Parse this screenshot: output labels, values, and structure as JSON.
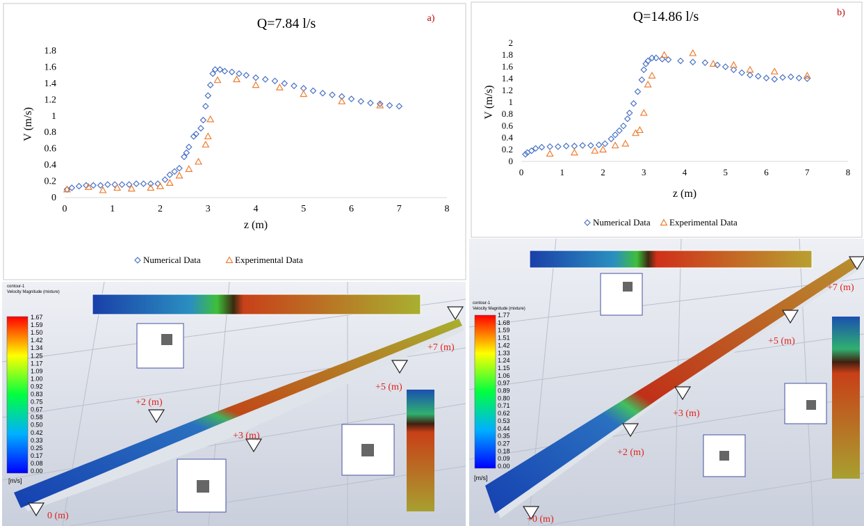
{
  "chart_data": [
    {
      "type": "scatter",
      "title": "Q=7.84  l/s",
      "label": "a)",
      "xlabel": "z (m)",
      "ylabel": "V (m/s)",
      "xlim": [
        0,
        8
      ],
      "xticks": [
        0,
        1,
        2,
        3,
        4,
        5,
        6,
        7,
        8
      ],
      "ylim": [
        0,
        1.8
      ],
      "yticks": [
        0,
        0.2,
        0.4,
        0.6,
        0.8,
        1,
        1.2,
        1.4,
        1.6,
        1.8
      ],
      "grid": false,
      "series": [
        {
          "name": "Numerical Data",
          "color": "#4a72c4",
          "marker": "diamond",
          "x": [
            0.05,
            0.15,
            0.3,
            0.45,
            0.6,
            0.75,
            0.9,
            1.05,
            1.2,
            1.35,
            1.5,
            1.65,
            1.8,
            1.95,
            2.1,
            2.2,
            2.3,
            2.4,
            2.5,
            2.55,
            2.6,
            2.7,
            2.75,
            2.85,
            2.9,
            2.95,
            3.0,
            3.05,
            3.1,
            3.15,
            3.25,
            3.35,
            3.5,
            3.65,
            3.8,
            4.0,
            4.2,
            4.4,
            4.6,
            4.8,
            5.0,
            5.2,
            5.4,
            5.6,
            5.8,
            6.0,
            6.2,
            6.4,
            6.6,
            6.8,
            7.0
          ],
          "values": [
            0.1,
            0.12,
            0.14,
            0.15,
            0.15,
            0.15,
            0.16,
            0.16,
            0.16,
            0.16,
            0.17,
            0.17,
            0.17,
            0.17,
            0.22,
            0.28,
            0.32,
            0.36,
            0.5,
            0.55,
            0.62,
            0.75,
            0.78,
            0.85,
            0.95,
            1.12,
            1.25,
            1.38,
            1.52,
            1.57,
            1.57,
            1.55,
            1.54,
            1.52,
            1.5,
            1.47,
            1.45,
            1.43,
            1.4,
            1.37,
            1.34,
            1.31,
            1.28,
            1.26,
            1.24,
            1.21,
            1.18,
            1.16,
            1.15,
            1.13,
            1.12
          ]
        },
        {
          "name": "Experimental Data",
          "color": "#ed7d31",
          "marker": "triangle",
          "x": [
            0.05,
            0.5,
            0.8,
            1.1,
            1.4,
            1.8,
            2.0,
            2.2,
            2.4,
            2.6,
            2.8,
            2.95,
            3.0,
            3.05,
            3.2,
            3.6,
            4.0,
            4.5,
            5.0,
            5.8,
            6.6
          ],
          "values": [
            0.1,
            0.13,
            0.09,
            0.12,
            0.11,
            0.12,
            0.14,
            0.18,
            0.27,
            0.35,
            0.44,
            0.65,
            0.75,
            0.96,
            1.44,
            1.45,
            1.38,
            1.35,
            1.27,
            1.18,
            1.13
          ]
        }
      ]
    },
    {
      "type": "scatter",
      "title": "Q=14.86  l/s",
      "label": "b)",
      "xlabel": "z (m)",
      "ylabel": "V (m/s)",
      "xlim": [
        0,
        8
      ],
      "xticks": [
        0,
        1,
        2,
        3,
        4,
        5,
        6,
        7,
        8
      ],
      "ylim": [
        0,
        2
      ],
      "yticks": [
        0,
        0.2,
        0.4,
        0.6,
        0.8,
        1,
        1.2,
        1.4,
        1.6,
        1.8,
        2
      ],
      "grid": false,
      "series": [
        {
          "name": "Numerical Data",
          "color": "#4a72c4",
          "marker": "diamond",
          "x": [
            0.1,
            0.15,
            0.25,
            0.35,
            0.5,
            0.7,
            0.9,
            1.1,
            1.3,
            1.5,
            1.7,
            1.9,
            2.05,
            2.2,
            2.3,
            2.4,
            2.5,
            2.6,
            2.65,
            2.75,
            2.85,
            2.95,
            3.0,
            3.05,
            3.1,
            3.2,
            3.3,
            3.45,
            3.6,
            3.9,
            4.2,
            4.5,
            4.8,
            5.0,
            5.2,
            5.4,
            5.6,
            5.8,
            6.0,
            6.2,
            6.4,
            6.6,
            6.8,
            7.0
          ],
          "values": [
            0.12,
            0.15,
            0.18,
            0.22,
            0.24,
            0.25,
            0.25,
            0.26,
            0.26,
            0.27,
            0.27,
            0.28,
            0.3,
            0.38,
            0.45,
            0.52,
            0.6,
            0.72,
            0.82,
            0.98,
            1.18,
            1.38,
            1.55,
            1.65,
            1.7,
            1.75,
            1.75,
            1.73,
            1.72,
            1.7,
            1.68,
            1.67,
            1.63,
            1.6,
            1.55,
            1.5,
            1.46,
            1.44,
            1.41,
            1.39,
            1.42,
            1.43,
            1.41,
            1.4
          ]
        },
        {
          "name": "Experimental Data",
          "color": "#ed7d31",
          "marker": "triangle",
          "x": [
            0.7,
            1.3,
            1.8,
            2.0,
            2.3,
            2.55,
            2.8,
            2.9,
            3.0,
            3.1,
            3.2,
            3.5,
            4.2,
            4.7,
            5.2,
            5.6,
            6.2,
            7.0
          ],
          "values": [
            0.13,
            0.15,
            0.18,
            0.2,
            0.27,
            0.3,
            0.48,
            0.53,
            0.82,
            1.3,
            1.45,
            1.8,
            1.83,
            1.65,
            1.63,
            1.55,
            1.52,
            1.45
          ]
        }
      ]
    }
  ],
  "panels": [
    {
      "title": "contour-1",
      "variable": "Velocity Magnitude (mixture)",
      "unit": "[m/s]",
      "colorbar": [
        "1.67",
        "1.59",
        "1.50",
        "1.42",
        "1.34",
        "1.25",
        "1.17",
        "1.09",
        "1.00",
        "0.92",
        "0.83",
        "0.75",
        "0.67",
        "0.58",
        "0.50",
        "0.42",
        "0.33",
        "0.25",
        "0.17",
        "0.08",
        "0.00"
      ],
      "markers": [
        "+2 (m)",
        "+3 (m)",
        "+5 (m)",
        "+7 (m)",
        "0 (m)"
      ]
    },
    {
      "title": "contour-1",
      "variable": "Velocity Magnitude (mixture)",
      "unit": "[m/s]",
      "colorbar": [
        "1.77",
        "1.68",
        "1.59",
        "1.51",
        "1.42",
        "1.33",
        "1.24",
        "1.15",
        "1.06",
        "0.97",
        "0.89",
        "0.80",
        "0.71",
        "0.62",
        "0.53",
        "0.44",
        "0.35",
        "0.27",
        "0.18",
        "0.09",
        "0.00"
      ],
      "markers": [
        "+7 (m)",
        "+5 (m)",
        "+3 (m)",
        "+2 (m)",
        "+0 (m)"
      ]
    }
  ]
}
